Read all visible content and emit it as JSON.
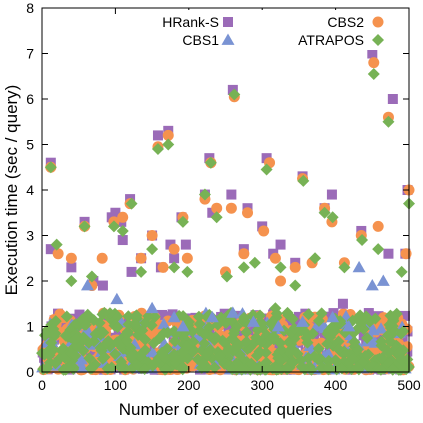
{
  "chart_data": {
    "type": "scatter",
    "title": "",
    "xlabel": "Number of executed queries",
    "ylabel": "Execution time (sec / query)",
    "xlim": [
      0,
      500
    ],
    "ylim": [
      0,
      8
    ],
    "x_ticks": [
      "0",
      "100",
      "200",
      "300",
      "400",
      "500"
    ],
    "y_ticks": [
      "0",
      "1",
      "2",
      "3",
      "4",
      "5",
      "6",
      "7",
      "8"
    ],
    "grid": false,
    "legend_position": "top-right",
    "series": [
      {
        "name": "HRank-S",
        "marker": "square",
        "color": "#9b6bb8",
        "x": [
          12,
          12,
          40,
          58,
          70,
          83,
          95,
          100,
          108,
          110,
          120,
          122,
          135,
          150,
          158,
          162,
          172,
          175,
          180,
          190,
          196,
          222,
          228,
          232,
          258,
          260,
          275,
          280,
          300,
          306,
          315,
          325,
          345,
          355,
          385,
          395,
          410,
          435,
          450,
          472,
          478,
          495,
          498
        ],
        "y": [
          4.6,
          2.7,
          2.3,
          3.3,
          2.0,
          1.9,
          3.4,
          3.5,
          3.3,
          2.9,
          3.8,
          2.2,
          2.5,
          3.0,
          5.2,
          2.3,
          5.3,
          2.8,
          2.5,
          3.4,
          2.8,
          3.9,
          4.7,
          3.5,
          3.9,
          6.2,
          2.7,
          3.6,
          3.2,
          4.7,
          2.6,
          2.8,
          2.4,
          4.3,
          3.6,
          3.9,
          1.5,
          3.1,
          7.0,
          2.6,
          6.0,
          2.6,
          4.0
        ]
      },
      {
        "name": "CBS2",
        "marker": "circle",
        "color": "#f5924e",
        "x": [
          12,
          22,
          40,
          58,
          68,
          82,
          98,
          110,
          120,
          135,
          150,
          158,
          165,
          172,
          180,
          192,
          198,
          222,
          230,
          238,
          250,
          258,
          262,
          275,
          280,
          302,
          310,
          318,
          325,
          345,
          355,
          368,
          385,
          395,
          412,
          435,
          452,
          458,
          472,
          496,
          500
        ],
        "y": [
          4.5,
          2.6,
          2.5,
          3.2,
          1.9,
          2.5,
          3.3,
          3.4,
          3.7,
          2.5,
          3.0,
          4.95,
          2.3,
          5.2,
          2.7,
          3.4,
          2.5,
          3.8,
          4.6,
          3.6,
          2.2,
          3.6,
          6.05,
          2.6,
          3.5,
          3.1,
          4.6,
          2.5,
          2.0,
          2.3,
          4.25,
          2.4,
          3.6,
          3.3,
          2.4,
          3.0,
          6.8,
          3.2,
          5.6,
          2.6,
          4.0
        ]
      },
      {
        "name": "CBS1",
        "marker": "triangle",
        "color": "#7a93d3",
        "x": [
          62,
          102,
          150,
          180,
          192,
          232,
          260,
          288,
          322,
          355,
          396,
          418,
          432,
          450,
          465
        ],
        "y": [
          1.9,
          1.6,
          1.4,
          1.2,
          1.0,
          1.2,
          1.3,
          1.1,
          1.0,
          1.1,
          1.2,
          1.0,
          2.3,
          1.9,
          2.0
        ]
      },
      {
        "name": "ATRAPOS",
        "marker": "diamond",
        "color": "#77b255",
        "x": [
          12,
          20,
          40,
          58,
          68,
          85,
          98,
          110,
          122,
          135,
          150,
          158,
          172,
          180,
          192,
          198,
          222,
          230,
          238,
          252,
          262,
          275,
          290,
          306,
          318,
          325,
          345,
          356,
          372,
          385,
          396,
          412,
          436,
          452,
          458,
          472,
          490,
          500
        ],
        "y": [
          4.5,
          2.8,
          2.0,
          3.2,
          2.1,
          1.3,
          3.2,
          3.1,
          3.7,
          2.2,
          2.7,
          4.9,
          5.0,
          2.3,
          3.3,
          2.2,
          3.9,
          4.6,
          3.4,
          2.1,
          6.1,
          2.3,
          2.4,
          4.45,
          1.4,
          2.3,
          1.9,
          4.2,
          2.5,
          3.5,
          3.4,
          2.3,
          2.9,
          6.55,
          2.7,
          5.5,
          2.2,
          3.7
        ]
      }
    ],
    "dense_band": {
      "description_free": true,
      "x_range": [
        0,
        500
      ],
      "y_range": [
        0.05,
        1.3
      ],
      "points_per_series": 460
    }
  }
}
